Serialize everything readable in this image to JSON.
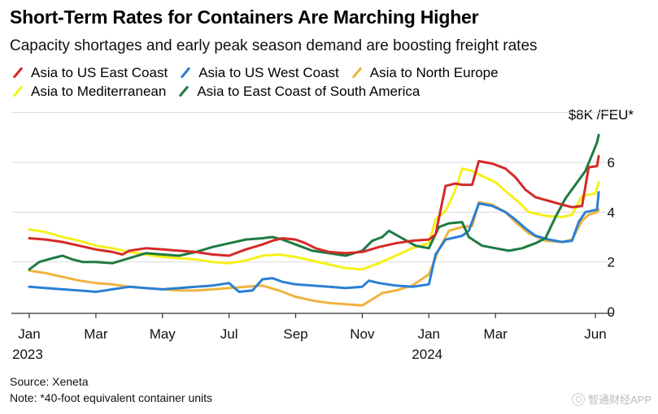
{
  "chart_data": {
    "type": "line",
    "title": "Short-Term Rates for Containers Are Marching Higher",
    "subtitle": "Capacity shortages and early peak season demand are boosting freight rates",
    "ylabel": "$8K /FEU*",
    "ylim": [
      0,
      8
    ],
    "yticks": [
      0,
      2,
      4,
      6
    ],
    "xlim": [
      0,
      17.4
    ],
    "xticks": [
      {
        "label": "Jan",
        "year": "2023",
        "x": 0
      },
      {
        "label": "Mar",
        "year": "",
        "x": 2
      },
      {
        "label": "May",
        "year": "",
        "x": 4
      },
      {
        "label": "Jul",
        "year": "",
        "x": 6
      },
      {
        "label": "Sep",
        "year": "",
        "x": 8
      },
      {
        "label": "Nov",
        "year": "",
        "x": 10
      },
      {
        "label": "Jan",
        "year": "2024",
        "x": 12
      },
      {
        "label": "Mar",
        "year": "",
        "x": 14
      },
      {
        "label": "Jun",
        "year": "",
        "x": 17
      }
    ],
    "series": [
      {
        "name": "Asia to US East Coast",
        "color": "#d42a26",
        "points": [
          [
            0,
            2.95
          ],
          [
            0.5,
            2.9
          ],
          [
            1,
            2.8
          ],
          [
            1.5,
            2.65
          ],
          [
            2,
            2.5
          ],
          [
            2.5,
            2.4
          ],
          [
            2.8,
            2.3
          ],
          [
            3,
            2.45
          ],
          [
            3.5,
            2.55
          ],
          [
            4,
            2.5
          ],
          [
            4.5,
            2.45
          ],
          [
            5,
            2.4
          ],
          [
            5.5,
            2.3
          ],
          [
            6,
            2.25
          ],
          [
            6.5,
            2.5
          ],
          [
            7,
            2.7
          ],
          [
            7.3,
            2.85
          ],
          [
            7.6,
            2.95
          ],
          [
            8,
            2.9
          ],
          [
            8.3,
            2.75
          ],
          [
            8.6,
            2.55
          ],
          [
            9,
            2.4
          ],
          [
            9.5,
            2.35
          ],
          [
            10,
            2.4
          ],
          [
            10.5,
            2.6
          ],
          [
            11,
            2.75
          ],
          [
            11.5,
            2.85
          ],
          [
            12,
            2.9
          ],
          [
            12.2,
            3.1
          ],
          [
            12.5,
            5.05
          ],
          [
            12.8,
            5.15
          ],
          [
            13,
            5.1
          ],
          [
            13.3,
            5.1
          ],
          [
            13.5,
            6.05
          ],
          [
            13.9,
            5.95
          ],
          [
            14.3,
            5.75
          ],
          [
            14.6,
            5.4
          ],
          [
            14.9,
            4.9
          ],
          [
            15.2,
            4.6
          ],
          [
            15.6,
            4.45
          ],
          [
            16,
            4.3
          ],
          [
            16.3,
            4.2
          ],
          [
            16.6,
            4.25
          ],
          [
            16.8,
            5.8
          ],
          [
            17.05,
            5.85
          ],
          [
            17.1,
            6.25
          ]
        ]
      },
      {
        "name": "Asia to US West Coast",
        "color": "#2a7fd4",
        "points": [
          [
            0,
            1.0
          ],
          [
            0.5,
            0.95
          ],
          [
            1,
            0.9
          ],
          [
            1.5,
            0.85
          ],
          [
            2,
            0.8
          ],
          [
            2.5,
            0.9
          ],
          [
            3,
            1.0
          ],
          [
            3.5,
            0.95
          ],
          [
            4,
            0.9
          ],
          [
            4.5,
            0.95
          ],
          [
            5,
            1.0
          ],
          [
            5.5,
            1.05
          ],
          [
            6,
            1.15
          ],
          [
            6.3,
            0.8
          ],
          [
            6.7,
            0.85
          ],
          [
            7,
            1.3
          ],
          [
            7.3,
            1.35
          ],
          [
            7.6,
            1.2
          ],
          [
            8,
            1.1
          ],
          [
            8.5,
            1.05
          ],
          [
            9,
            1.0
          ],
          [
            9.5,
            0.95
          ],
          [
            10,
            1.0
          ],
          [
            10.2,
            1.25
          ],
          [
            10.5,
            1.15
          ],
          [
            11,
            1.05
          ],
          [
            11.5,
            1.0
          ],
          [
            12,
            1.1
          ],
          [
            12.2,
            2.3
          ],
          [
            12.5,
            2.9
          ],
          [
            13,
            3.05
          ],
          [
            13.2,
            3.25
          ],
          [
            13.5,
            4.35
          ],
          [
            13.9,
            4.25
          ],
          [
            14.3,
            4.0
          ],
          [
            14.6,
            3.7
          ],
          [
            14.9,
            3.35
          ],
          [
            15.2,
            3.05
          ],
          [
            15.6,
            2.9
          ],
          [
            16,
            2.8
          ],
          [
            16.3,
            2.85
          ],
          [
            16.5,
            3.6
          ],
          [
            16.7,
            4.0
          ],
          [
            17.05,
            4.1
          ],
          [
            17.1,
            4.8
          ]
        ]
      },
      {
        "name": "Asia to North Europe",
        "color": "#f0b33f",
        "points": [
          [
            0,
            1.65
          ],
          [
            0.5,
            1.55
          ],
          [
            1,
            1.4
          ],
          [
            1.5,
            1.25
          ],
          [
            2,
            1.15
          ],
          [
            2.5,
            1.1
          ],
          [
            3,
            1.0
          ],
          [
            3.5,
            0.95
          ],
          [
            4,
            0.9
          ],
          [
            4.5,
            0.85
          ],
          [
            5,
            0.85
          ],
          [
            5.5,
            0.9
          ],
          [
            6,
            0.95
          ],
          [
            6.5,
            1.0
          ],
          [
            7,
            1.05
          ],
          [
            7.5,
            0.85
          ],
          [
            8,
            0.6
          ],
          [
            8.5,
            0.45
          ],
          [
            9,
            0.35
          ],
          [
            9.5,
            0.3
          ],
          [
            10,
            0.25
          ],
          [
            10.3,
            0.5
          ],
          [
            10.6,
            0.75
          ],
          [
            11,
            0.85
          ],
          [
            11.5,
            1.05
          ],
          [
            12,
            1.5
          ],
          [
            12.3,
            2.5
          ],
          [
            12.6,
            3.25
          ],
          [
            13,
            3.4
          ],
          [
            13.3,
            3.45
          ],
          [
            13.5,
            4.4
          ],
          [
            13.9,
            4.3
          ],
          [
            14.3,
            4.0
          ],
          [
            14.6,
            3.6
          ],
          [
            15,
            3.15
          ],
          [
            15.5,
            2.85
          ],
          [
            16,
            2.8
          ],
          [
            16.3,
            2.9
          ],
          [
            16.6,
            3.65
          ],
          [
            16.8,
            3.9
          ],
          [
            17.05,
            4.0
          ],
          [
            17.1,
            4.1
          ]
        ]
      },
      {
        "name": "Asia to Mediterranean",
        "color": "#f5f01a",
        "points": [
          [
            0,
            3.3
          ],
          [
            0.5,
            3.2
          ],
          [
            1,
            3.0
          ],
          [
            1.5,
            2.85
          ],
          [
            2,
            2.65
          ],
          [
            2.5,
            2.55
          ],
          [
            3,
            2.4
          ],
          [
            3.5,
            2.3
          ],
          [
            4,
            2.2
          ],
          [
            4.5,
            2.15
          ],
          [
            5,
            2.1
          ],
          [
            5.5,
            2.0
          ],
          [
            6,
            1.95
          ],
          [
            6.5,
            2.05
          ],
          [
            7,
            2.25
          ],
          [
            7.5,
            2.3
          ],
          [
            8,
            2.2
          ],
          [
            8.5,
            2.05
          ],
          [
            9,
            1.9
          ],
          [
            9.5,
            1.75
          ],
          [
            10,
            1.7
          ],
          [
            10.5,
            1.95
          ],
          [
            11,
            2.25
          ],
          [
            11.5,
            2.55
          ],
          [
            12,
            2.75
          ],
          [
            12.2,
            3.7
          ],
          [
            12.5,
            4.05
          ],
          [
            12.8,
            4.9
          ],
          [
            13,
            5.75
          ],
          [
            13.3,
            5.65
          ],
          [
            13.6,
            5.45
          ],
          [
            14,
            5.2
          ],
          [
            14.3,
            4.85
          ],
          [
            14.7,
            4.4
          ],
          [
            15,
            4.0
          ],
          [
            15.5,
            3.85
          ],
          [
            16,
            3.8
          ],
          [
            16.3,
            3.9
          ],
          [
            16.6,
            4.65
          ],
          [
            17,
            4.75
          ],
          [
            17.1,
            5.2
          ]
        ]
      },
      {
        "name": "Asia to East Coast of South America",
        "color": "#1d7b42",
        "points": [
          [
            0,
            1.7
          ],
          [
            0.3,
            2.0
          ],
          [
            0.7,
            2.15
          ],
          [
            1,
            2.25
          ],
          [
            1.3,
            2.1
          ],
          [
            1.6,
            2.0
          ],
          [
            2,
            2.0
          ],
          [
            2.5,
            1.95
          ],
          [
            3,
            2.15
          ],
          [
            3.5,
            2.35
          ],
          [
            4,
            2.3
          ],
          [
            4.5,
            2.25
          ],
          [
            5,
            2.4
          ],
          [
            5.5,
            2.6
          ],
          [
            6,
            2.75
          ],
          [
            6.5,
            2.9
          ],
          [
            7,
            2.95
          ],
          [
            7.3,
            3.0
          ],
          [
            7.6,
            2.9
          ],
          [
            8,
            2.7
          ],
          [
            8.5,
            2.45
          ],
          [
            9,
            2.35
          ],
          [
            9.5,
            2.25
          ],
          [
            10,
            2.45
          ],
          [
            10.3,
            2.85
          ],
          [
            10.6,
            3.0
          ],
          [
            10.8,
            3.25
          ],
          [
            11.2,
            2.95
          ],
          [
            11.6,
            2.65
          ],
          [
            12,
            2.55
          ],
          [
            12.3,
            3.4
          ],
          [
            12.6,
            3.55
          ],
          [
            13,
            3.6
          ],
          [
            13.2,
            3.0
          ],
          [
            13.6,
            2.65
          ],
          [
            14,
            2.55
          ],
          [
            14.4,
            2.45
          ],
          [
            14.8,
            2.55
          ],
          [
            15.2,
            2.75
          ],
          [
            15.5,
            2.95
          ],
          [
            15.8,
            3.8
          ],
          [
            16.1,
            4.55
          ],
          [
            16.4,
            5.1
          ],
          [
            16.7,
            5.65
          ],
          [
            16.9,
            6.3
          ],
          [
            17.05,
            6.8
          ],
          [
            17.1,
            7.1
          ]
        ]
      }
    ]
  },
  "footer": {
    "source": "Source: Xeneta",
    "note": "Note: *40-foot equivalent container units"
  },
  "watermark": "智通财经APP"
}
